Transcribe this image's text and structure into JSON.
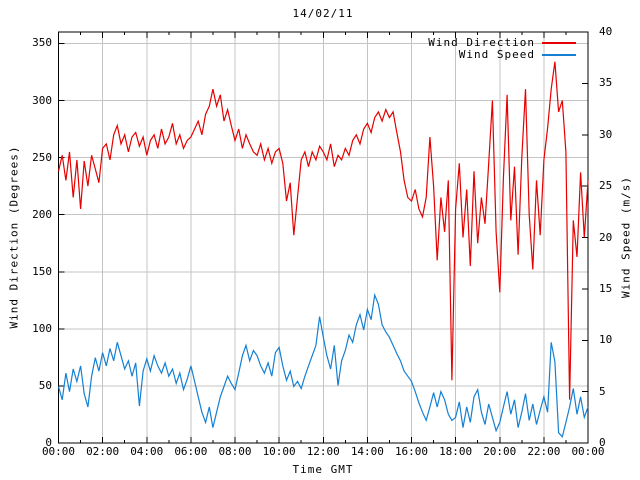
{
  "title": "14/02/11",
  "axes": {
    "x_label": "Time GMT",
    "y_left_label": "Wind Direction (Degrees)",
    "y_right_label": "Wind Speed (m/s)"
  },
  "legend": {
    "direction_label": "Wind Direction",
    "speed_label": "Wind Speed"
  },
  "colors": {
    "direction_line": "#e60000",
    "speed_line": "#1580d2",
    "grid": "#c4c4c4",
    "axis": "#000000",
    "background": "#ffffff"
  },
  "chart_data": {
    "type": "line",
    "title": "14/02/11",
    "xlabel": "Time GMT",
    "x_unit": "minutes since 00:00 GMT",
    "x_range_minutes": [
      0,
      1440
    ],
    "sample_interval_minutes": 10,
    "x_major_tick_minutes": 120,
    "x_minor_tick_minutes": 60,
    "x_tick_labels": [
      "00:00",
      "02:00",
      "04:00",
      "06:00",
      "08:00",
      "10:00",
      "12:00",
      "14:00",
      "16:00",
      "18:00",
      "20:00",
      "22:00",
      "00:00"
    ],
    "y_left": {
      "label": "Wind Direction (Degrees)",
      "range": [
        0,
        360
      ],
      "ticks": [
        0,
        50,
        100,
        150,
        200,
        250,
        300,
        350
      ]
    },
    "y_right": {
      "label": "Wind Speed (m/s)",
      "range": [
        0,
        40
      ],
      "ticks": [
        0,
        5,
        10,
        15,
        20,
        25,
        30,
        35,
        40
      ]
    },
    "grid": true,
    "legend_position": "top-right-inside",
    "series": [
      {
        "name": "Wind Direction",
        "axis": "left",
        "color": "#e60000",
        "values": [
          238,
          252,
          230,
          255,
          215,
          248,
          205,
          247,
          225,
          252,
          240,
          228,
          258,
          262,
          248,
          270,
          278,
          262,
          270,
          255,
          268,
          272,
          260,
          268,
          252,
          265,
          270,
          258,
          275,
          262,
          268,
          280,
          262,
          270,
          258,
          265,
          268,
          275,
          282,
          270,
          288,
          295,
          310,
          295,
          305,
          282,
          292,
          278,
          265,
          275,
          258,
          270,
          262,
          255,
          252,
          262,
          248,
          258,
          245,
          255,
          258,
          245,
          212,
          228,
          182,
          215,
          248,
          255,
          242,
          255,
          248,
          260,
          255,
          248,
          262,
          242,
          252,
          248,
          258,
          252,
          265,
          270,
          262,
          275,
          280,
          272,
          285,
          290,
          282,
          292,
          285,
          290,
          272,
          255,
          230,
          215,
          212,
          222,
          205,
          198,
          215,
          268,
          225,
          160,
          215,
          185,
          230,
          55,
          205,
          245,
          180,
          222,
          155,
          238,
          175,
          215,
          192,
          245,
          300,
          185,
          132,
          232,
          305,
          195,
          242,
          165,
          250,
          310,
          200,
          152,
          230,
          182,
          248,
          276,
          310,
          334,
          290,
          300,
          255,
          38,
          195,
          163,
          237,
          180,
          230
        ]
      },
      {
        "name": "Wind Speed",
        "axis": "right",
        "color": "#1580d2",
        "values": [
          5.5,
          4.2,
          6.8,
          5.0,
          7.2,
          6.0,
          7.5,
          4.8,
          3.5,
          6.5,
          8.3,
          7.0,
          8.8,
          7.5,
          9.2,
          8.0,
          9.8,
          8.5,
          7.2,
          8.0,
          6.5,
          7.8,
          3.6,
          7.0,
          8.2,
          7.0,
          8.5,
          7.5,
          6.8,
          7.8,
          6.5,
          7.2,
          5.8,
          6.8,
          5.2,
          6.2,
          7.5,
          6.0,
          4.5,
          3.0,
          2.0,
          3.5,
          1.5,
          3.0,
          4.5,
          5.5,
          6.5,
          5.8,
          5.2,
          6.8,
          8.5,
          9.5,
          8.0,
          9.0,
          8.5,
          7.5,
          6.8,
          7.8,
          6.5,
          8.8,
          9.3,
          7.5,
          6.1,
          7.0,
          5.5,
          6.0,
          5.3,
          6.5,
          7.5,
          8.5,
          9.5,
          12.3,
          10.3,
          8.5,
          7.2,
          9.5,
          5.6,
          8.0,
          9.0,
          10.5,
          9.8,
          11.5,
          12.5,
          11.0,
          13.0,
          12.0,
          14.4,
          13.5,
          11.5,
          10.8,
          10.3,
          9.5,
          8.7,
          8.0,
          7.0,
          6.5,
          6.0,
          5.0,
          3.9,
          3.0,
          2.2,
          3.5,
          4.9,
          3.5,
          5.0,
          4.2,
          2.8,
          2.2,
          2.5,
          4.0,
          1.5,
          3.5,
          2.0,
          4.5,
          5.2,
          3.0,
          1.8,
          3.8,
          2.5,
          1.2,
          2.0,
          3.5,
          5.0,
          2.8,
          4.2,
          1.5,
          3.0,
          4.8,
          2.2,
          3.8,
          1.8,
          3.2,
          4.5,
          3.0,
          9.8,
          7.9,
          1.0,
          0.6,
          2.0,
          3.5,
          5.3,
          2.8,
          4.5,
          2.5,
          3.5
        ]
      }
    ]
  }
}
